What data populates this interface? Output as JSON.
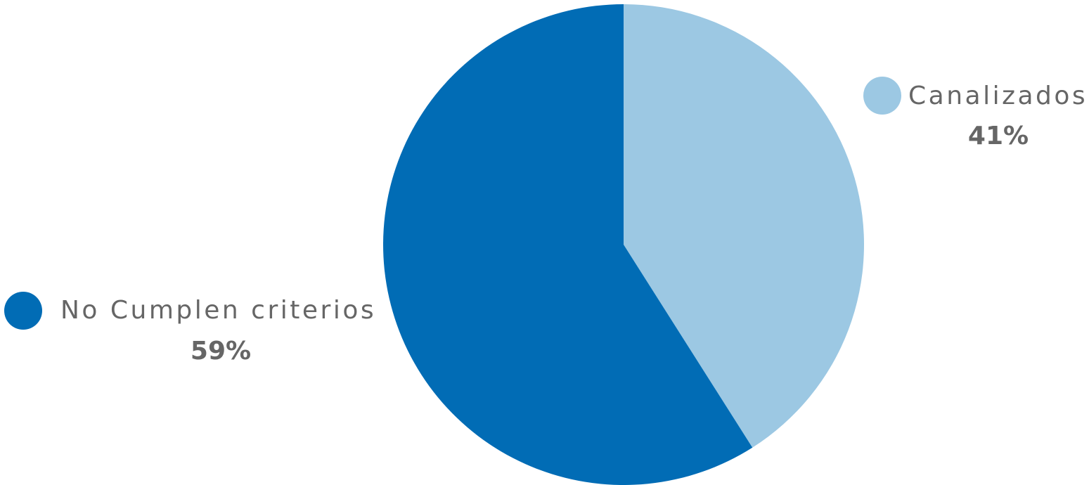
{
  "chart_data": {
    "type": "pie",
    "title": "",
    "slices": [
      {
        "label": "Canalizados",
        "value": 41,
        "value_label": "41%",
        "color": "#9cc8e3"
      },
      {
        "label": "No Cumplen criterios",
        "value": 59,
        "value_label": "59%",
        "color": "#016cb5"
      }
    ],
    "start_angle": "12 o'clock",
    "direction": "clockwise",
    "legend": "labels beside slices"
  },
  "colors": {
    "text": "#666666"
  }
}
